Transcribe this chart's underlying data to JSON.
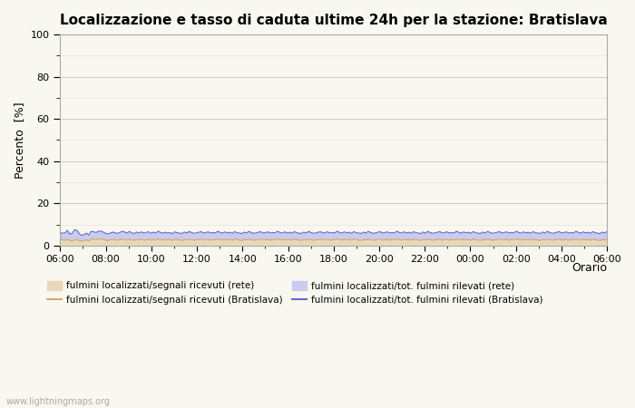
{
  "title": "Localizzazione e tasso di caduta ultime 24h per la stazione: Bratislava",
  "xlabel": "Orario",
  "ylabel": "Percento  [%]",
  "ylim": [
    0,
    100
  ],
  "yticks": [
    0,
    20,
    40,
    60,
    80,
    100
  ],
  "yticks_minor": [
    10,
    30,
    50,
    70,
    90
  ],
  "x_labels": [
    "06:00",
    "08:00",
    "10:00",
    "12:00",
    "14:00",
    "16:00",
    "18:00",
    "20:00",
    "22:00",
    "00:00",
    "02:00",
    "04:00",
    "06:00"
  ],
  "color_fill_rete": "#e8d8b8",
  "color_fill_bratislava": "#c8ccee",
  "color_line_rete": "#d4aa60",
  "color_line_bratislava": "#6666cc",
  "bg_color": "#f8f8f0",
  "grid_color": "#cccccc",
  "watermark": "www.lightningmaps.org",
  "legend_entries": [
    "fulmini localizzati/segnali ricevuti (rete)",
    "fulmini localizzati/segnali ricevuti (Bratislava)",
    "fulmini localizzati/tot. fulmini rilevati (rete)",
    "fulmini localizzati/tot. fulmini rilevati (Bratislava)"
  ],
  "rete_signal_data": [
    3.2,
    2.8,
    2.5,
    3.1,
    2.4,
    2.2,
    2.6,
    2.9,
    2.3,
    2.1,
    2.5,
    2.7,
    2.2,
    3.0,
    3.2,
    2.8,
    3.1,
    3.3,
    2.9,
    2.6,
    2.4,
    2.8,
    3.0,
    2.7,
    2.5,
    2.9,
    3.1,
    2.8,
    2.6,
    3.0,
    2.7,
    2.5,
    2.9,
    2.7,
    3.1,
    2.6,
    2.8,
    3.0,
    2.5,
    2.9,
    2.7,
    3.2,
    2.8,
    2.6,
    3.0,
    2.7,
    2.9,
    2.5,
    3.1,
    2.8,
    2.6,
    2.4,
    2.9,
    2.7,
    3.0,
    2.8,
    2.5,
    2.7,
    2.9,
    3.1,
    2.6,
    2.8,
    3.0,
    2.5,
    2.9,
    2.7,
    3.2,
    2.8,
    2.6,
    3.0,
    2.7,
    2.9,
    2.5,
    3.1,
    2.8,
    2.6,
    2.4,
    2.9,
    2.7,
    3.0,
    2.8,
    2.5,
    2.7,
    2.9,
    3.1,
    2.6,
    2.8,
    3.0,
    2.5,
    2.9,
    2.7,
    3.2,
    2.8,
    2.6,
    3.0,
    2.7,
    2.9,
    2.5,
    3.1,
    2.8,
    2.6,
    2.4,
    2.9,
    2.7,
    3.0,
    2.8,
    2.5,
    2.7,
    2.9,
    3.1,
    2.6,
    2.8,
    3.0,
    2.5,
    2.9,
    2.7,
    3.2,
    2.8,
    2.6,
    3.0,
    2.7,
    2.9,
    2.5,
    3.1,
    2.8,
    2.6,
    2.4,
    2.9,
    2.7,
    3.0,
    2.8,
    2.5,
    2.7,
    2.9,
    3.1,
    2.6,
    2.8,
    3.0,
    2.5,
    2.9,
    2.7,
    3.2,
    2.8,
    2.6,
    3.0,
    2.7,
    2.9,
    2.5,
    3.1,
    2.8,
    2.6,
    2.4,
    2.9,
    2.7,
    3.0,
    2.8,
    2.5,
    2.7,
    2.9,
    3.1,
    2.6,
    2.8,
    3.0,
    2.5,
    2.9,
    2.7,
    3.2,
    2.8,
    2.6,
    3.0,
    2.7,
    2.9,
    2.5,
    3.1,
    2.8,
    2.6,
    2.4,
    2.9,
    2.7,
    3.0,
    2.8,
    2.5,
    2.7,
    2.9,
    3.1,
    2.6,
    2.8,
    3.0,
    2.5,
    2.9,
    2.7,
    3.2,
    2.8,
    2.6,
    3.0,
    2.7,
    2.9,
    2.5,
    3.1,
    2.8,
    2.6,
    2.4,
    2.9,
    2.7,
    3.0,
    2.8,
    2.5,
    2.7,
    2.9,
    3.1,
    2.6,
    2.8,
    3.0,
    2.5,
    2.9,
    2.7,
    3.2,
    2.8,
    2.6,
    3.0,
    2.7,
    2.9,
    2.5,
    3.1,
    2.8,
    2.6,
    2.4,
    2.9,
    2.7,
    3.0
  ],
  "bratislava_total_data": [
    6.2,
    5.8,
    6.0,
    7.2,
    5.4,
    5.8,
    7.5,
    7.2,
    5.6,
    4.8,
    5.2,
    5.9,
    5.0,
    6.8,
    6.5,
    6.2,
    6.8,
    6.9,
    6.4,
    5.8,
    5.5,
    5.9,
    6.4,
    6.0,
    5.8,
    6.2,
    6.8,
    6.4,
    5.9,
    6.7,
    6.0,
    5.7,
    6.4,
    5.9,
    6.5,
    5.9,
    6.3,
    6.5,
    5.8,
    6.4,
    5.9,
    6.8,
    6.2,
    5.9,
    6.3,
    5.9,
    6.2,
    5.6,
    6.5,
    6.1,
    5.9,
    5.7,
    6.4,
    5.9,
    6.7,
    6.2,
    5.8,
    6.0,
    6.3,
    6.6,
    5.9,
    6.2,
    6.5,
    5.9,
    6.2,
    6.0,
    6.8,
    6.2,
    5.9,
    6.5,
    6.0,
    6.3,
    5.8,
    6.6,
    6.1,
    5.9,
    5.7,
    6.4,
    5.9,
    6.7,
    6.2,
    5.8,
    6.0,
    6.3,
    6.6,
    5.9,
    6.2,
    6.5,
    5.9,
    6.2,
    6.0,
    6.8,
    6.2,
    5.9,
    6.5,
    6.0,
    6.3,
    5.8,
    6.6,
    6.1,
    5.9,
    5.7,
    6.4,
    5.9,
    6.7,
    6.2,
    5.8,
    6.0,
    6.3,
    6.6,
    5.9,
    6.2,
    6.5,
    5.9,
    6.2,
    6.0,
    6.8,
    6.2,
    5.9,
    6.5,
    6.0,
    6.3,
    5.8,
    6.6,
    6.1,
    5.9,
    5.7,
    6.4,
    5.9,
    6.7,
    6.2,
    5.8,
    6.0,
    6.3,
    6.6,
    5.9,
    6.2,
    6.5,
    5.9,
    6.2,
    6.0,
    6.8,
    6.2,
    5.9,
    6.5,
    6.0,
    6.3,
    5.8,
    6.6,
    6.1,
    5.9,
    5.7,
    6.4,
    5.9,
    6.7,
    6.2,
    5.8,
    6.0,
    6.3,
    6.6,
    5.9,
    6.2,
    6.5,
    5.9,
    6.2,
    6.0,
    6.8,
    6.2,
    5.9,
    6.5,
    6.0,
    6.3,
    5.8,
    6.6,
    6.1,
    5.9,
    5.7,
    6.4,
    5.9,
    6.7,
    6.2,
    5.8,
    6.0,
    6.3,
    6.6,
    5.9,
    6.2,
    6.5,
    5.9,
    6.2,
    6.0,
    6.8,
    6.2,
    5.9,
    6.5,
    6.0,
    6.3,
    5.8,
    6.6,
    6.1,
    5.9,
    5.7,
    6.4,
    5.9,
    6.7,
    6.2,
    5.8,
    6.0,
    6.3,
    6.6,
    5.9,
    6.2,
    6.5,
    5.9,
    6.2,
    6.0,
    6.8,
    6.2,
    5.9,
    6.5,
    6.0,
    6.3,
    5.8,
    6.6,
    6.1,
    5.9,
    5.7,
    6.4,
    5.9,
    6.7
  ]
}
